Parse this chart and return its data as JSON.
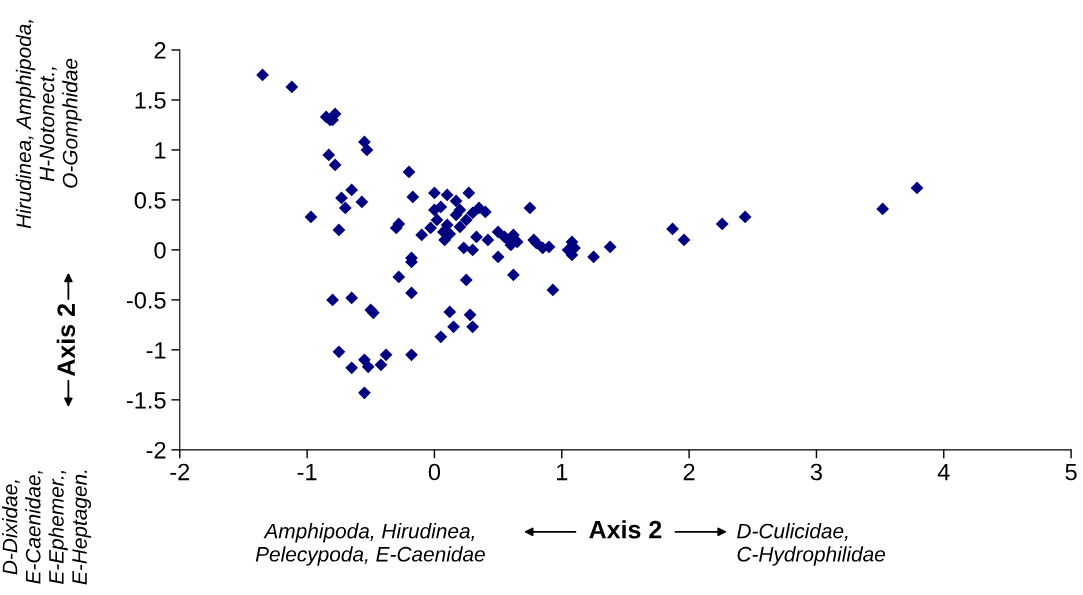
{
  "chart_data": {
    "type": "scatter",
    "xlabel": "Axis 2",
    "ylabel": "Axis 2",
    "annotations": [
      "Hirudinea, Amphipoda,\nH-Notonect.,\nO-Gomphidae",
      "D-Dixidae,\nE-Caenidae,\nE-Ephemer.,\nE-Heptagen.",
      "Amphipoda, Hirudinea,\nPelecypoda, E-Caenidae",
      "D-Culicidae,\nC-Hydrophilidae"
    ],
    "xlim": [
      -2,
      5
    ],
    "xticks": [
      -2,
      -1,
      0,
      1,
      2,
      3,
      4,
      5
    ],
    "ylim": [
      -2,
      2
    ],
    "yticks": [
      -2,
      -1.5,
      -1,
      -0.5,
      0,
      0.5,
      1,
      1.5,
      2
    ],
    "grid": false,
    "marker": "diamond",
    "series": [
      {
        "color": "#000080",
        "x": [
          -1.35,
          -1.12,
          -0.85,
          -0.8,
          -0.78,
          -0.82,
          -0.55,
          -0.53,
          -0.83,
          -0.78,
          -0.2,
          -0.65,
          -0.73,
          -0.7,
          -0.57,
          -0.17,
          -0.97,
          -0.75,
          -0.28,
          -0.3,
          -0.18,
          -0.18,
          -0.1,
          0,
          0.1,
          0.05,
          0.17,
          0.27,
          0.2,
          0.3,
          0.35,
          0.4,
          0,
          0.02,
          0.1,
          -0.03,
          0.07,
          0.12,
          0.17,
          0.25,
          0.2,
          0.08,
          0.23,
          0.3,
          0.33,
          0.42,
          0.5,
          0.55,
          0.58,
          0.6,
          0.62,
          0.65,
          0.75,
          0.78,
          0.8,
          0.85,
          0.9,
          0.5,
          0.62,
          1.05,
          1.08,
          1.08,
          1.1,
          1.25,
          1.38,
          0.93,
          -0.28,
          -0.18,
          0.25,
          0.12,
          0.28,
          0.3,
          0.15,
          0.05,
          -0.8,
          -0.65,
          -0.5,
          -0.48,
          -0.75,
          -0.18,
          -0.65,
          -0.55,
          -0.52,
          -0.42,
          -0.38,
          -0.55,
          1.87,
          1.96,
          2.26,
          2.44,
          3.52,
          3.79
        ],
        "values": [
          1.75,
          1.63,
          1.33,
          1.3,
          1.36,
          1.3,
          1.08,
          1.0,
          0.95,
          0.85,
          0.78,
          0.6,
          0.52,
          0.42,
          0.48,
          0.53,
          0.33,
          0.2,
          0.26,
          0.22,
          -0.08,
          -0.12,
          0.15,
          0.57,
          0.55,
          0.43,
          0.49,
          0.57,
          0.4,
          0.37,
          0.42,
          0.38,
          0.4,
          0.3,
          0.25,
          0.22,
          0.18,
          0.16,
          0.35,
          0.3,
          0.23,
          0.1,
          0.02,
          0.0,
          0.13,
          0.1,
          0.18,
          0.13,
          0.1,
          0.05,
          0.15,
          0.08,
          0.42,
          0.1,
          0.07,
          0.02,
          0.03,
          -0.07,
          -0.25,
          0.0,
          0.08,
          -0.05,
          0.02,
          -0.07,
          0.03,
          -0.4,
          -0.27,
          -0.43,
          -0.3,
          -0.62,
          -0.65,
          -0.77,
          -0.77,
          -0.87,
          -0.5,
          -0.48,
          -0.6,
          -0.63,
          -1.02,
          -1.05,
          -1.18,
          -1.1,
          -1.17,
          -1.15,
          -1.05,
          -1.43,
          0.21,
          0.1,
          0.26,
          0.33,
          0.41,
          0.62
        ]
      }
    ]
  }
}
